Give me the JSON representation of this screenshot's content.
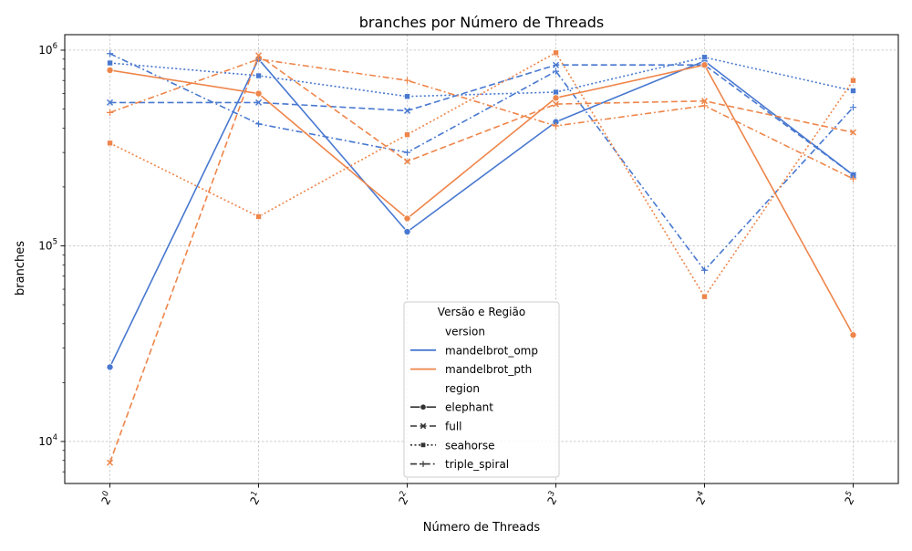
{
  "chart_data": {
    "type": "line",
    "title": "branches por Número de Threads",
    "xlabel": "Número de Threads",
    "ylabel": "branches",
    "x_scale": "log2",
    "y_scale": "log10",
    "x": [
      1,
      2,
      4,
      8,
      16,
      32
    ],
    "x_ticks": [
      {
        "base": "2",
        "exp": "0"
      },
      {
        "base": "2",
        "exp": "1"
      },
      {
        "base": "2",
        "exp": "2"
      },
      {
        "base": "2",
        "exp": "3"
      },
      {
        "base": "2",
        "exp": "4"
      },
      {
        "base": "2",
        "exp": "5"
      }
    ],
    "x_tick_rotation_deg": 60,
    "y_ticks": [
      {
        "value": 10000,
        "base": "10",
        "exp": "4"
      },
      {
        "value": 100000,
        "base": "10",
        "exp": "5"
      },
      {
        "value": 1000000,
        "base": "10",
        "exp": "6"
      }
    ],
    "ylim": [
      6100,
      1200000
    ],
    "grid": true,
    "colors": {
      "mandelbrot_omp": "#4878d0",
      "mandelbrot_pth": "#ee854a"
    },
    "legend": {
      "title": "Versão e Região",
      "placement": "lower center",
      "hue_title": "version",
      "style_title": "region",
      "versions": [
        "mandelbrot_omp",
        "mandelbrot_pth"
      ],
      "regions": [
        {
          "name": "elephant",
          "marker": "circle",
          "dash": "solid"
        },
        {
          "name": "full",
          "marker": "x",
          "dash": "dashed"
        },
        {
          "name": "seahorse",
          "marker": "square",
          "dash": "dotted"
        },
        {
          "name": "triple_spiral",
          "marker": "plus",
          "dash": "dashdot"
        }
      ]
    },
    "series": [
      {
        "version": "mandelbrot_omp",
        "region": "elephant",
        "values": [
          24000,
          900000,
          118000,
          430000,
          880000,
          230000
        ]
      },
      {
        "version": "mandelbrot_omp",
        "region": "full",
        "values": [
          540000,
          540000,
          490000,
          840000,
          840000,
          230000
        ]
      },
      {
        "version": "mandelbrot_omp",
        "region": "seahorse",
        "values": [
          860000,
          740000,
          580000,
          610000,
          920000,
          620000
        ]
      },
      {
        "version": "mandelbrot_omp",
        "region": "triple_spiral",
        "values": [
          960000,
          420000,
          300000,
          780000,
          75000,
          510000
        ]
      },
      {
        "version": "mandelbrot_pth",
        "region": "elephant",
        "values": [
          790000,
          600000,
          138000,
          570000,
          840000,
          35000
        ]
      },
      {
        "version": "mandelbrot_pth",
        "region": "full",
        "values": [
          7800,
          940000,
          270000,
          530000,
          550000,
          380000
        ]
      },
      {
        "version": "mandelbrot_pth",
        "region": "seahorse",
        "values": [
          335000,
          141000,
          370000,
          970000,
          55000,
          700000
        ]
      },
      {
        "version": "mandelbrot_pth",
        "region": "triple_spiral",
        "values": [
          480000,
          900000,
          700000,
          410000,
          520000,
          220000
        ]
      }
    ]
  }
}
